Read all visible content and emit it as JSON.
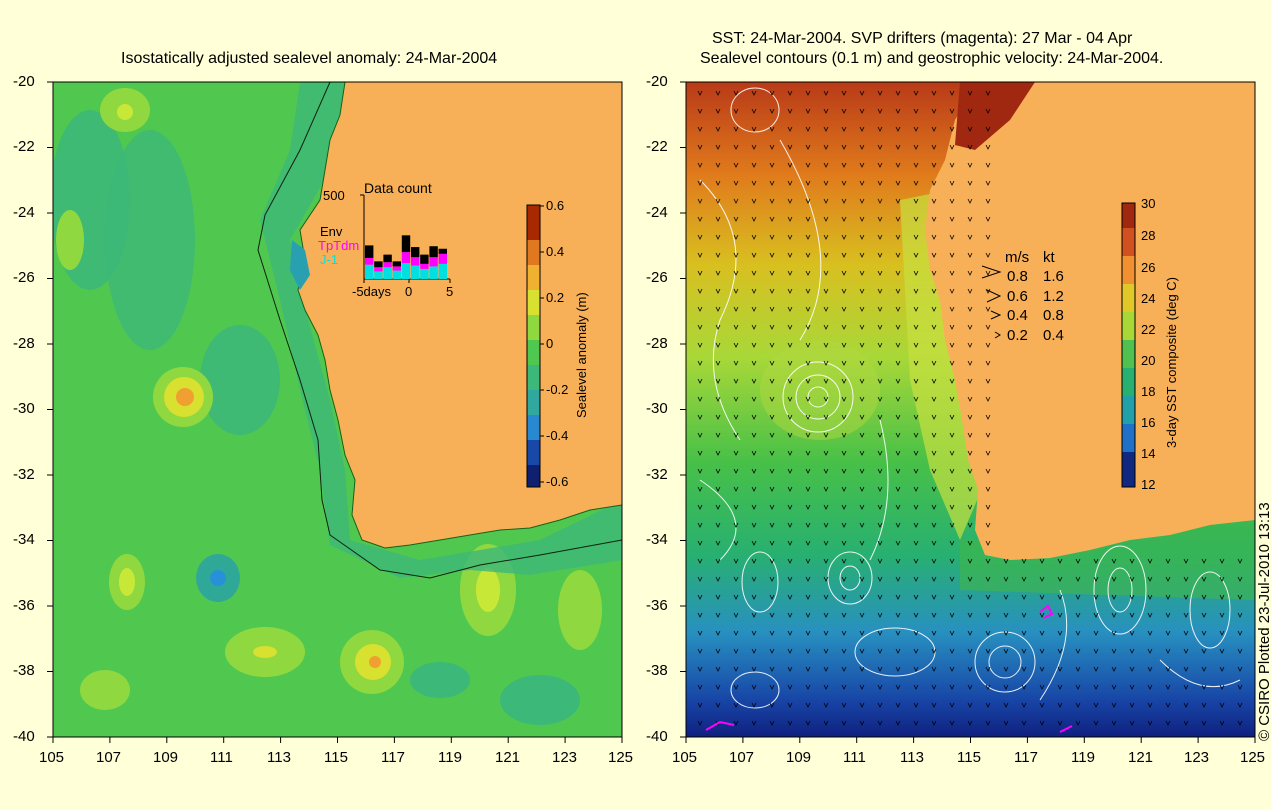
{
  "left_panel": {
    "title": "Isostatically adjusted sealevel anomaly: 24-Mar-2004",
    "y_ticks": [
      "-20",
      "-22",
      "-24",
      "-26",
      "-28",
      "-30",
      "-32",
      "-34",
      "-36",
      "-38",
      "-40"
    ],
    "x_ticks": [
      "105",
      "107",
      "109",
      "111",
      "113",
      "115",
      "117",
      "119",
      "121",
      "123",
      "125"
    ],
    "colorbar": {
      "label": "Sealevel anomaly (m)",
      "ticks": [
        "0.6",
        "0.4",
        "0.2",
        "0",
        "-0.2",
        "-0.4",
        "-0.6"
      ]
    },
    "inset": {
      "title": "Data count",
      "y_max": "500",
      "legend": [
        {
          "name": "Env",
          "color": "#000000"
        },
        {
          "name": "TpTdm",
          "color": "#ff00ff"
        },
        {
          "name": "J-1",
          "color": "#00e0e0"
        }
      ],
      "x_ticks": [
        "-5days",
        "0",
        "5"
      ],
      "bars": [
        {
          "j1": 0.17,
          "tp": 0.08,
          "env": 0.15
        },
        {
          "j1": 0.09,
          "tp": 0.05,
          "env": 0.07
        },
        {
          "j1": 0.14,
          "tp": 0.06,
          "env": 0.09
        },
        {
          "j1": 0.1,
          "tp": 0.05,
          "env": 0.06
        },
        {
          "j1": 0.19,
          "tp": 0.13,
          "env": 0.2
        },
        {
          "j1": 0.16,
          "tp": 0.1,
          "env": 0.12
        },
        {
          "j1": 0.12,
          "tp": 0.06,
          "env": 0.11
        },
        {
          "j1": 0.15,
          "tp": 0.11,
          "env": 0.13
        },
        {
          "j1": 0.18,
          "tp": 0.12,
          "env": 0.06
        }
      ]
    }
  },
  "right_panel": {
    "title_line1": "SST: 24-Mar-2004. SVP drifters (magenta): 27 Mar - 04 Apr",
    "title_line2": "Sealevel contours (0.1 m) and geostrophic velocity: 24-Mar-2004.",
    "y_ticks": [
      "-20",
      "-22",
      "-24",
      "-26",
      "-28",
      "-30",
      "-32",
      "-34",
      "-36",
      "-38",
      "-40"
    ],
    "x_ticks": [
      "105",
      "107",
      "109",
      "111",
      "113",
      "115",
      "117",
      "119",
      "121",
      "123",
      "125"
    ],
    "velocity_legend": {
      "header_ms": "m/s",
      "header_kt": "kt",
      "rows": [
        {
          "ms": "0.8",
          "kt": "1.6"
        },
        {
          "ms": "0.6",
          "kt": "1.2"
        },
        {
          "ms": "0.4",
          "kt": "0.8"
        },
        {
          "ms": "0.2",
          "kt": "0.4"
        }
      ]
    },
    "colorbar": {
      "label": "3-day SST composite (deg C)",
      "ticks": [
        "30",
        "28",
        "26",
        "24",
        "22",
        "20",
        "18",
        "16",
        "14",
        "12"
      ]
    }
  },
  "credit": "© CSIRO Plotted 23-Jul-2010 13:13",
  "colors": {
    "background": "#ffffd8",
    "land": "#f8b058",
    "ocean_left": "#50c850",
    "drifter": "#ff00ff"
  }
}
